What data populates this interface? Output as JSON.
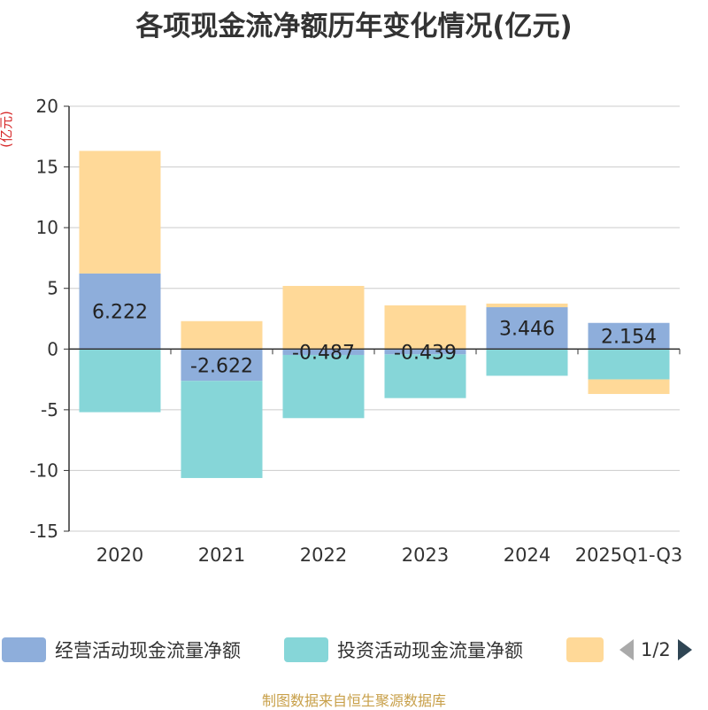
{
  "title": "各项现金流净额历年变化情况(亿元)",
  "unit_label": "(亿元)",
  "source": "制图数据来自恒生聚源数据库",
  "pager": {
    "text": "1/2",
    "prev_icon": "triangle-left-icon",
    "next_icon": "triangle-right-icon"
  },
  "chart_data": {
    "type": "bar",
    "stacked": true,
    "title": "各项现金流净额历年变化情况(亿元)",
    "ylabel": "(亿元)",
    "xlabel": "",
    "ylim": [
      -15,
      20
    ],
    "yticks": [
      20,
      15,
      10,
      5,
      0,
      -5,
      -10,
      -15
    ],
    "grid": true,
    "categories": [
      "2020",
      "2021",
      "2022",
      "2023",
      "2024",
      "2025Q1-Q3"
    ],
    "series": [
      {
        "name": "经营活动现金流量净额",
        "color": "#8eaedb",
        "values": [
          6.222,
          -2.622,
          -0.487,
          -0.439,
          3.446,
          2.154
        ],
        "labels": [
          "6.222",
          "-2.622",
          "-0.487",
          "-0.439",
          "3.446",
          "2.154"
        ]
      },
      {
        "name": "投资活动现金流量净额",
        "color": "#86d6d8",
        "values": [
          -5.2,
          -8.0,
          -5.2,
          -3.6,
          -2.2,
          -2.5
        ]
      },
      {
        "name": "",
        "color": "#ffd998",
        "values": [
          10.1,
          2.3,
          5.2,
          3.6,
          0.3,
          -1.2
        ]
      }
    ]
  }
}
